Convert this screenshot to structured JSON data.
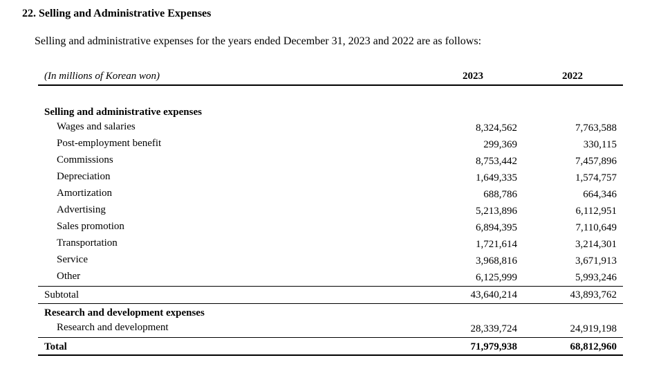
{
  "title": "22. Selling and Administrative Expenses",
  "intro": "Selling and administrative expenses for the years ended December 31, 2023 and 2022 are as follows:",
  "table": {
    "unit_label": "(In millions of Korean won)",
    "columns": [
      "2023",
      "2022"
    ],
    "sections": [
      {
        "heading": "Selling and administrative expenses",
        "rows": [
          {
            "label": "Wages and salaries",
            "values": [
              "8,324,562",
              "7,763,588"
            ]
          },
          {
            "label": "Post-employment benefit",
            "values": [
              "299,369",
              "330,115"
            ]
          },
          {
            "label": "Commissions",
            "values": [
              "8,753,442",
              "7,457,896"
            ]
          },
          {
            "label": "Depreciation",
            "values": [
              "1,649,335",
              "1,574,757"
            ]
          },
          {
            "label": "Amortization",
            "values": [
              "688,786",
              "664,346"
            ]
          },
          {
            "label": "Advertising",
            "values": [
              "5,213,896",
              "6,112,951"
            ]
          },
          {
            "label": "Sales promotion",
            "values": [
              "6,894,395",
              "7,110,649"
            ]
          },
          {
            "label": "Transportation",
            "values": [
              "1,721,614",
              "3,214,301"
            ]
          },
          {
            "label": "Service",
            "values": [
              "3,968,816",
              "3,671,913"
            ]
          },
          {
            "label": "Other",
            "values": [
              "6,125,999",
              "5,993,246"
            ]
          }
        ],
        "subtotal": {
          "label": "Subtotal",
          "values": [
            "43,640,214",
            "43,893,762"
          ]
        }
      },
      {
        "heading": "Research and development expenses",
        "rows": [
          {
            "label": "Research and development",
            "values": [
              "28,339,724",
              "24,919,198"
            ]
          }
        ]
      }
    ],
    "total": {
      "label": "Total",
      "values": [
        "71,979,938",
        "68,812,960"
      ]
    }
  }
}
